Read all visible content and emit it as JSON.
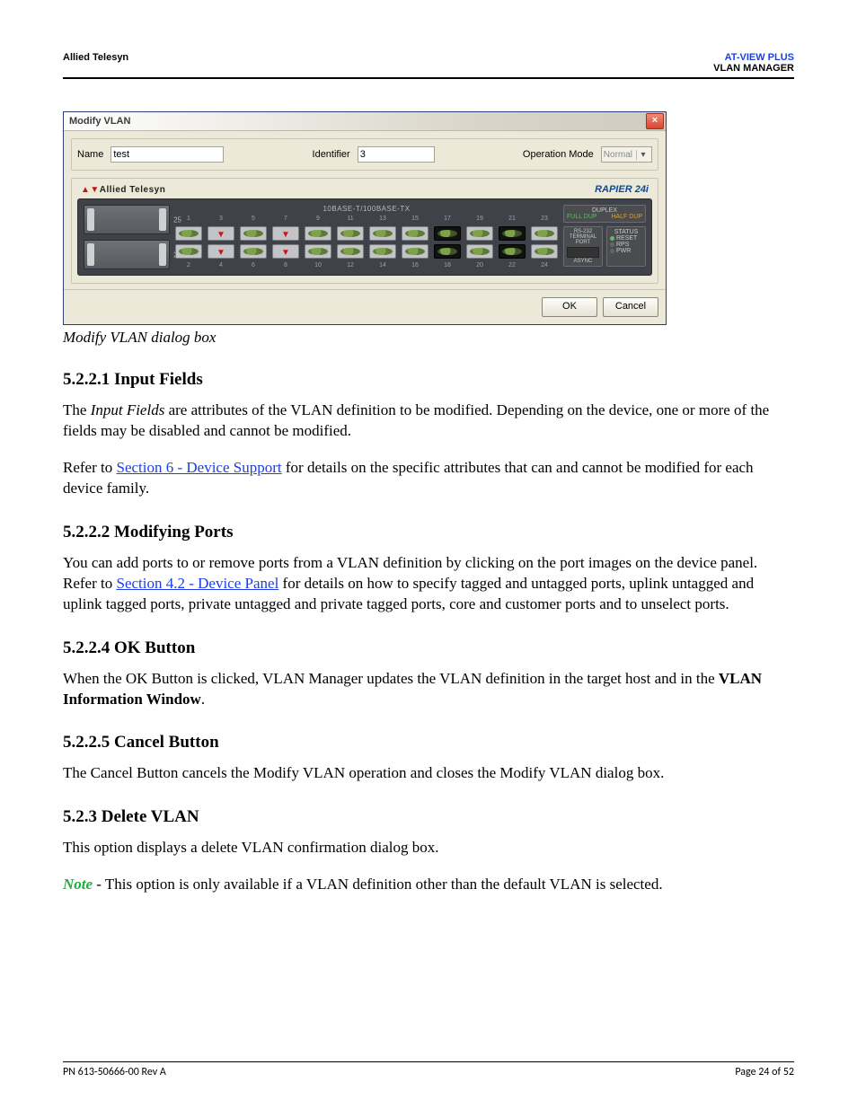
{
  "header": {
    "left": "Allied Telesyn",
    "right_blue": "AT-VIEW PLUS",
    "right_black": "VLAN MANAGER"
  },
  "dialog": {
    "title": "Modify VLAN",
    "name_label": "Name",
    "name_value": "test",
    "identifier_label": "Identifier",
    "identifier_value": "3",
    "opmode_label": "Operation Mode",
    "opmode_value": "Normal",
    "brand_red": "A",
    "brand_black": "Allied Telesyn",
    "model": "RAPIER 24i",
    "ports_title": "10BASE-T/100BASE-TX",
    "slot_a": "25",
    "slot_b": "26",
    "top_nums": [
      "1",
      "3",
      "5",
      "7",
      "9",
      "11",
      "13",
      "15",
      "17",
      "19",
      "21",
      "23"
    ],
    "bot_nums": [
      "2",
      "4",
      "6",
      "8",
      "10",
      "12",
      "14",
      "16",
      "18",
      "20",
      "22",
      "24"
    ],
    "top_state": [
      "unsel",
      "tag",
      "unsel",
      "tag",
      "unsel",
      "unsel",
      "unsel",
      "unsel",
      "sel",
      "unsel",
      "sel",
      "unsel"
    ],
    "bot_state": [
      "unsel",
      "tag",
      "unsel",
      "tag",
      "unsel",
      "unsel",
      "unsel",
      "unsel",
      "sel",
      "unsel",
      "sel",
      "unsel"
    ],
    "duplex_title": "DUPLEX",
    "duplex_full": "FULL DUP",
    "duplex_half": "HALF DUP",
    "rs232": "RS-232 TERMINAL PORT",
    "status": "STATUS",
    "reset": "RESET",
    "rps": "RPS",
    "pwr": "PWR",
    "async": "ASYNC",
    "ok": "OK",
    "cancel": "Cancel"
  },
  "caption": "Modify VLAN dialog box",
  "sections": {
    "s1_title": "5.2.2.1 Input Fields",
    "s1_p1a": "The ",
    "s1_p1b": "Input Fields",
    "s1_p1c": " are attributes of the VLAN definition to be modified. Depending on the device, one or more of the fields may be disabled and cannot be modified.",
    "s1_p2a": "Refer to ",
    "s1_p2link": "Section 6 - Device Support",
    "s1_p2b": " for details on the specific attributes that can and cannot be modified for each device family.",
    "s2_title": "5.2.2.2 Modifying Ports",
    "s2_p1a": "You can add ports to or remove ports from a VLAN definition by clicking on the port images on the device panel. Refer to ",
    "s2_p1link": "Section 4.2 - Device Panel",
    "s2_p1b": " for details on how to specify tagged and untagged ports, uplink untagged and uplink tagged ports, private untagged and private tagged ports, core and customer ports and to unselect ports.",
    "s3_title": "5.2.2.4 OK Button",
    "s3_p1a": "When the OK Button is clicked, VLAN Manager updates the VLAN definition in the target host and in the ",
    "s3_p1b": "VLAN Information Window",
    "s3_p1c": ".",
    "s4_title": "5.2.2.5 Cancel Button",
    "s4_p1": "The Cancel Button cancels the Modify VLAN operation and closes the Modify VLAN dialog box.",
    "s5_title": "5.2.3 Delete VLAN",
    "s5_p1": "This option displays a delete VLAN confirmation dialog box.",
    "s5_p2a": "Note",
    "s5_p2b": " - This option is only available if a VLAN definition other than the default VLAN is selected."
  },
  "footer": {
    "left": "PN 613-50666-00 Rev A",
    "right": "Page 24 of 52"
  },
  "colors": {
    "link": "#1a3fe6",
    "note": "#1fae3a",
    "brand_red": "#c81414",
    "model_blue": "#0a4a9e",
    "board_bg": "#3f4248"
  }
}
